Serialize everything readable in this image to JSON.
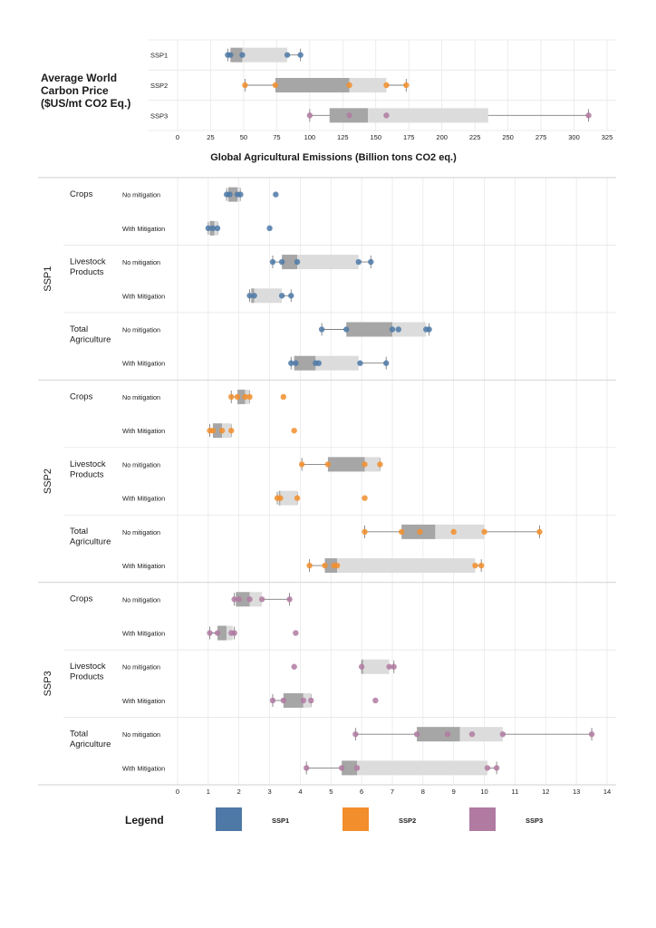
{
  "colors": {
    "SSP1": "#4e79a7",
    "SSP2": "#f28e2b",
    "SSP3": "#b07aa1",
    "box_inner": "#a6a6a6",
    "box_outer": "#dcdcdc",
    "whisker": "#7f7f7f",
    "grid": "#e6e6e6"
  },
  "legend": {
    "title": "Legend",
    "items": [
      {
        "name": "SSP1",
        "color": "#4e79a7"
      },
      {
        "name": "SSP2",
        "color": "#f28e2b"
      },
      {
        "name": "SSP3",
        "color": "#b07aa1"
      }
    ]
  },
  "chart_data": [
    {
      "type": "box",
      "ylabel": "Average World Carbon Price ($US/mt CO2 Eq.)",
      "xlim": [
        0,
        325
      ],
      "xticks": [
        0,
        25,
        50,
        75,
        100,
        125,
        150,
        175,
        200,
        225,
        250,
        275,
        300,
        325
      ],
      "rows": [
        {
          "label": "SSP1",
          "scenario": "SSP1",
          "q1": 40,
          "median": 49,
          "q3": 83,
          "whisker_low": 38,
          "whisker_high": 93,
          "points": [
            38,
            40,
            49,
            83,
            93
          ]
        },
        {
          "label": "SSP2",
          "scenario": "SSP2",
          "q1": 74,
          "median": 130,
          "q3": 158,
          "whisker_low": 51,
          "whisker_high": 173,
          "points": [
            51,
            74,
            130,
            158,
            173
          ]
        },
        {
          "label": "SSP3",
          "scenario": "SSP3",
          "q1": 115,
          "median": 144,
          "q3": 235,
          "whisker_low": 100,
          "whisker_high": 311,
          "points": [
            100,
            130,
            158,
            311
          ]
        }
      ]
    },
    {
      "type": "box",
      "title": "Global Agricultural Emissions (Billion tons CO2 eq.)",
      "xlim": [
        0,
        14
      ],
      "xticks": [
        0,
        1,
        2,
        3,
        4,
        5,
        6,
        7,
        8,
        9,
        10,
        11,
        12,
        13,
        14
      ],
      "groups": [
        {
          "scenario": "SSP1",
          "categories": [
            {
              "name": "Crops",
              "rows": [
                {
                  "label": "No mitigation",
                  "q1": 1.65,
                  "median": 1.95,
                  "q3": 2.05,
                  "whisker_low": 1.6,
                  "whisker_high": 2.05,
                  "points": [
                    1.6,
                    1.7,
                    1.95,
                    2.05,
                    3.2
                  ]
                },
                {
                  "label": "With Mitigation",
                  "q1": 1.05,
                  "median": 1.2,
                  "q3": 1.3,
                  "whisker_low": 1.0,
                  "whisker_high": 1.3,
                  "points": [
                    1.0,
                    1.15,
                    1.3,
                    3.0
                  ]
                }
              ]
            },
            {
              "name": "Livestock Products",
              "rows": [
                {
                  "label": "No mitigation",
                  "q1": 3.4,
                  "median": 3.9,
                  "q3": 5.9,
                  "whisker_low": 3.1,
                  "whisker_high": 6.3,
                  "points": [
                    3.1,
                    3.4,
                    3.9,
                    5.9,
                    6.3
                  ]
                },
                {
                  "label": "With Mitigation",
                  "q1": 2.4,
                  "median": 2.5,
                  "q3": 3.4,
                  "whisker_low": 2.35,
                  "whisker_high": 3.7,
                  "points": [
                    2.35,
                    2.5,
                    3.4,
                    3.7
                  ]
                }
              ]
            },
            {
              "name": "Total Agriculture",
              "rows": [
                {
                  "label": "No mitigation",
                  "q1": 5.5,
                  "median": 7.0,
                  "q3": 8.1,
                  "whisker_low": 4.7,
                  "whisker_high": 8.2,
                  "points": [
                    4.7,
                    5.5,
                    7.0,
                    7.2,
                    8.1,
                    8.2
                  ]
                },
                {
                  "label": "With Mitigation",
                  "q1": 3.8,
                  "median": 4.5,
                  "q3": 5.9,
                  "whisker_low": 3.7,
                  "whisker_high": 6.8,
                  "points": [
                    3.7,
                    3.85,
                    4.5,
                    4.6,
                    5.95,
                    6.8
                  ]
                }
              ]
            }
          ]
        },
        {
          "scenario": "SSP2",
          "categories": [
            {
              "name": "Crops",
              "rows": [
                {
                  "label": "No mitigation",
                  "q1": 1.95,
                  "median": 2.2,
                  "q3": 2.35,
                  "whisker_low": 1.75,
                  "whisker_high": 2.35,
                  "points": [
                    1.75,
                    1.95,
                    2.2,
                    2.35,
                    3.45
                  ]
                },
                {
                  "label": "With Mitigation",
                  "q1": 1.15,
                  "median": 1.45,
                  "q3": 1.75,
                  "whisker_low": 1.05,
                  "whisker_high": 1.75,
                  "points": [
                    1.05,
                    1.15,
                    1.45,
                    1.75,
                    3.8
                  ]
                }
              ]
            },
            {
              "name": "Livestock Products",
              "rows": [
                {
                  "label": "No mitigation",
                  "q1": 4.9,
                  "median": 6.1,
                  "q3": 6.6,
                  "whisker_low": 4.05,
                  "whisker_high": 6.6,
                  "points": [
                    4.05,
                    4.9,
                    6.1,
                    6.6
                  ]
                },
                {
                  "label": "With Mitigation",
                  "q1": 3.3,
                  "median": 3.35,
                  "q3": 3.9,
                  "whisker_low": 3.25,
                  "whisker_high": 3.9,
                  "points": [
                    3.25,
                    3.35,
                    3.9,
                    6.1
                  ]
                }
              ]
            },
            {
              "name": "Total Agriculture",
              "rows": [
                {
                  "label": "No mitigation",
                  "q1": 7.3,
                  "median": 8.4,
                  "q3": 10.0,
                  "whisker_low": 6.1,
                  "whisker_high": 11.8,
                  "points": [
                    6.1,
                    7.3,
                    7.9,
                    9.0,
                    10.0,
                    11.8
                  ]
                },
                {
                  "label": "With Mitigation",
                  "q1": 4.8,
                  "median": 5.2,
                  "q3": 9.7,
                  "whisker_low": 4.3,
                  "whisker_high": 9.9,
                  "points": [
                    4.3,
                    4.8,
                    5.1,
                    5.2,
                    9.7,
                    9.9
                  ]
                }
              ]
            }
          ]
        },
        {
          "scenario": "SSP3",
          "categories": [
            {
              "name": "Crops",
              "rows": [
                {
                  "label": "No mitigation",
                  "q1": 1.9,
                  "median": 2.35,
                  "q3": 2.75,
                  "whisker_low": 1.85,
                  "whisker_high": 3.65,
                  "points": [
                    1.85,
                    2.0,
                    2.35,
                    2.75,
                    3.65
                  ]
                },
                {
                  "label": "With Mitigation",
                  "q1": 1.3,
                  "median": 1.6,
                  "q3": 1.8,
                  "whisker_low": 1.05,
                  "whisker_high": 1.85,
                  "points": [
                    1.05,
                    1.3,
                    1.75,
                    1.85,
                    3.85
                  ]
                }
              ]
            },
            {
              "name": "Livestock Products",
              "rows": [
                {
                  "label": "No mitigation",
                  "q1": 6.0,
                  "median": 6.05,
                  "q3": 6.9,
                  "whisker_low": 6.0,
                  "whisker_high": 7.05,
                  "points": [
                    3.8,
                    6.0,
                    6.9,
                    7.05
                  ]
                },
                {
                  "label": "With Mitigation",
                  "q1": 3.45,
                  "median": 4.1,
                  "q3": 4.35,
                  "whisker_low": 3.1,
                  "whisker_high": 4.35,
                  "points": [
                    3.1,
                    3.45,
                    4.1,
                    4.35,
                    6.45
                  ]
                }
              ]
            },
            {
              "name": "Total Agriculture",
              "rows": [
                {
                  "label": "No mitigation",
                  "q1": 7.8,
                  "median": 9.2,
                  "q3": 10.6,
                  "whisker_low": 5.8,
                  "whisker_high": 13.5,
                  "points": [
                    5.8,
                    7.8,
                    8.8,
                    9.6,
                    10.6,
                    13.5
                  ]
                },
                {
                  "label": "With Mitigation",
                  "q1": 5.35,
                  "median": 5.85,
                  "q3": 10.1,
                  "whisker_low": 4.2,
                  "whisker_high": 10.4,
                  "points": [
                    4.2,
                    5.35,
                    5.85,
                    10.1,
                    10.4
                  ]
                }
              ]
            }
          ]
        }
      ]
    }
  ]
}
